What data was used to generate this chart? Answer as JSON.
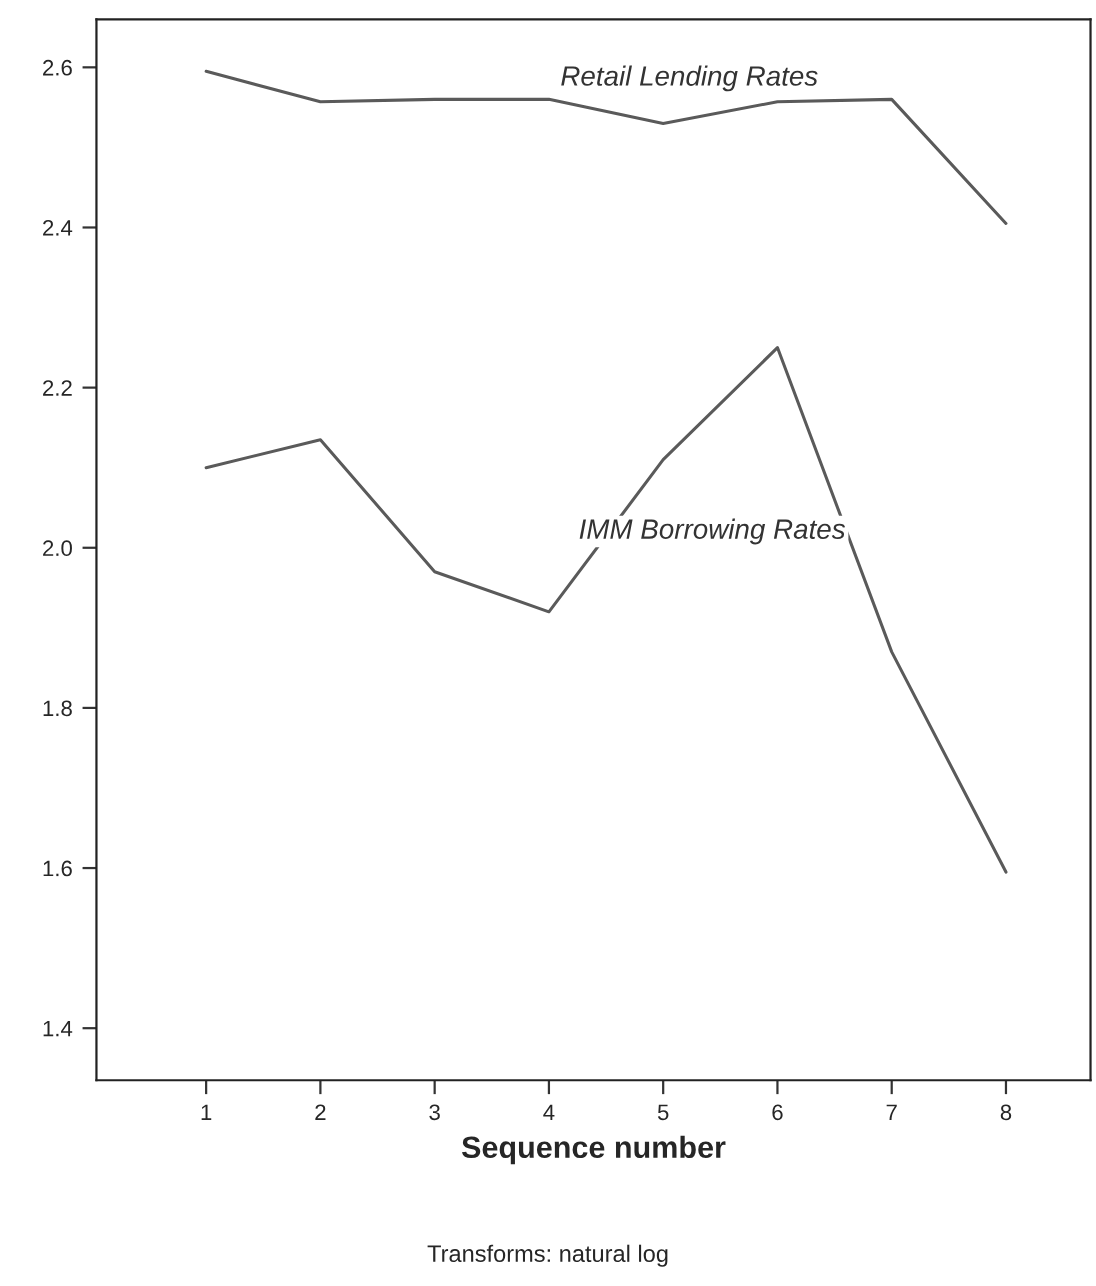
{
  "chart_data": {
    "type": "line",
    "xlabel": "Sequence number",
    "x": [
      1,
      2,
      3,
      4,
      5,
      6,
      7,
      8
    ],
    "xlim": [
      0.04,
      8.74
    ],
    "xticks": [
      1,
      2,
      3,
      4,
      5,
      6,
      7,
      8
    ],
    "ylim": [
      1.335,
      2.66
    ],
    "yticks": [
      {
        "value": 1.4,
        "label": "1.4"
      },
      {
        "value": 1.6,
        "label": "1.6"
      },
      {
        "value": 1.8,
        "label": "1.8"
      },
      {
        "value": 2.0,
        "label": "2.0"
      },
      {
        "value": 2.2,
        "label": "2.2"
      },
      {
        "value": 2.4,
        "label": "2.4"
      },
      {
        "value": 2.6,
        "label": "2.6"
      }
    ],
    "series": [
      {
        "color": "#5a5a5a",
        "values": [
          2.595,
          2.557,
          2.56,
          2.56,
          2.53,
          2.557,
          2.56,
          2.405
        ]
      },
      {
        "color": "#5a5a5a",
        "values": [
          2.1,
          2.135,
          1.97,
          1.92,
          2.11,
          2.25,
          1.87,
          1.595
        ]
      }
    ],
    "annotations": [
      {
        "text": "Retail Lending Rates",
        "x": 4.1,
        "y": 2.57
      },
      "IMM Borrowing Rates",
      "Transforms: natural log"
    ],
    "grid": false,
    "marker": "none",
    "line_style": "solid"
  }
}
